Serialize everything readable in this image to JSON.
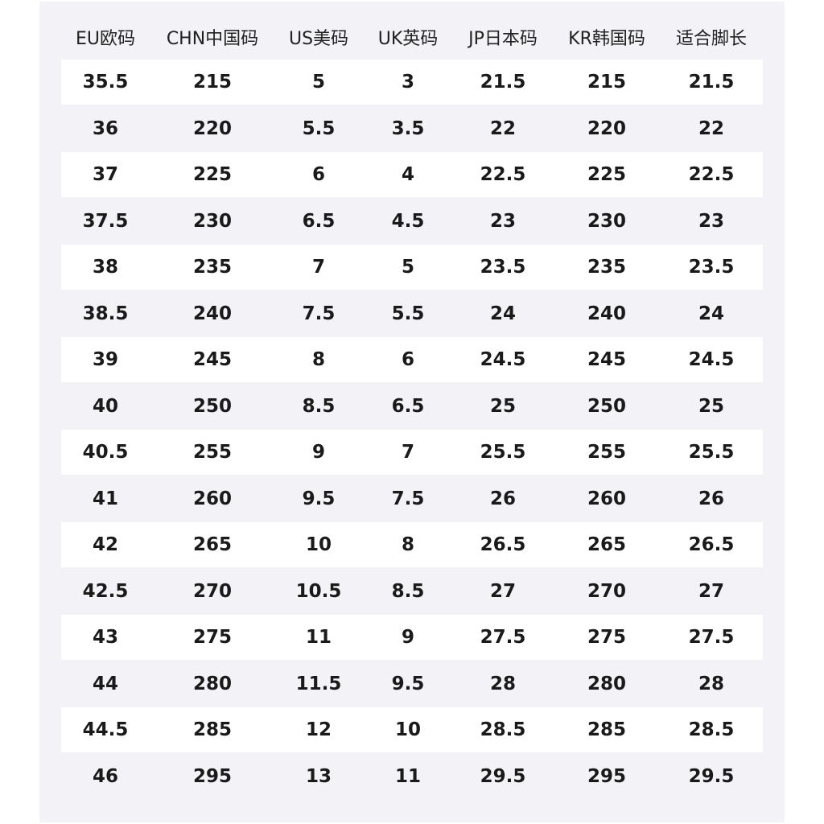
{
  "headers": [
    "EU欧码",
    "CHN中国码",
    "US美码",
    "UK英码",
    "JP日本码",
    "KR韩国码",
    "适合脚长"
  ],
  "rows": [
    [
      "35.5",
      "215",
      "5",
      "3",
      "21.5",
      "215",
      "21.5"
    ],
    [
      "36",
      "220",
      "5.5",
      "3.5",
      "22",
      "220",
      "22"
    ],
    [
      "37",
      "225",
      "6",
      "4",
      "22.5",
      "225",
      "22.5"
    ],
    [
      "37.5",
      "230",
      "6.5",
      "4.5",
      "23",
      "230",
      "23"
    ],
    [
      "38",
      "235",
      "7",
      "5",
      "23.5",
      "235",
      "23.5"
    ],
    [
      "38.5",
      "240",
      "7.5",
      "5.5",
      "24",
      "240",
      "24"
    ],
    [
      "39",
      "245",
      "8",
      "6",
      "24.5",
      "245",
      "24.5"
    ],
    [
      "40",
      "250",
      "8.5",
      "6.5",
      "25",
      "250",
      "25"
    ],
    [
      "40.5",
      "255",
      "9",
      "7",
      "25.5",
      "255",
      "25.5"
    ],
    [
      "41",
      "260",
      "9.5",
      "7.5",
      "26",
      "260",
      "26"
    ],
    [
      "42",
      "265",
      "10",
      "8",
      "26.5",
      "265",
      "26.5"
    ],
    [
      "42.5",
      "270",
      "10.5",
      "8.5",
      "27",
      "270",
      "27"
    ],
    [
      "43",
      "275",
      "11",
      "9",
      "27.5",
      "275",
      "27.5"
    ],
    [
      "44",
      "280",
      "11.5",
      "9.5",
      "28",
      "280",
      "28"
    ],
    [
      "44.5",
      "285",
      "12",
      "10",
      "28.5",
      "285",
      "28.5"
    ],
    [
      "46",
      "295",
      "13",
      "11",
      "29.5",
      "295",
      "29.5"
    ]
  ],
  "colors": {
    "panel": "#f2f2f7",
    "stripe": "#ffffff",
    "text": "#1a1a1a"
  }
}
